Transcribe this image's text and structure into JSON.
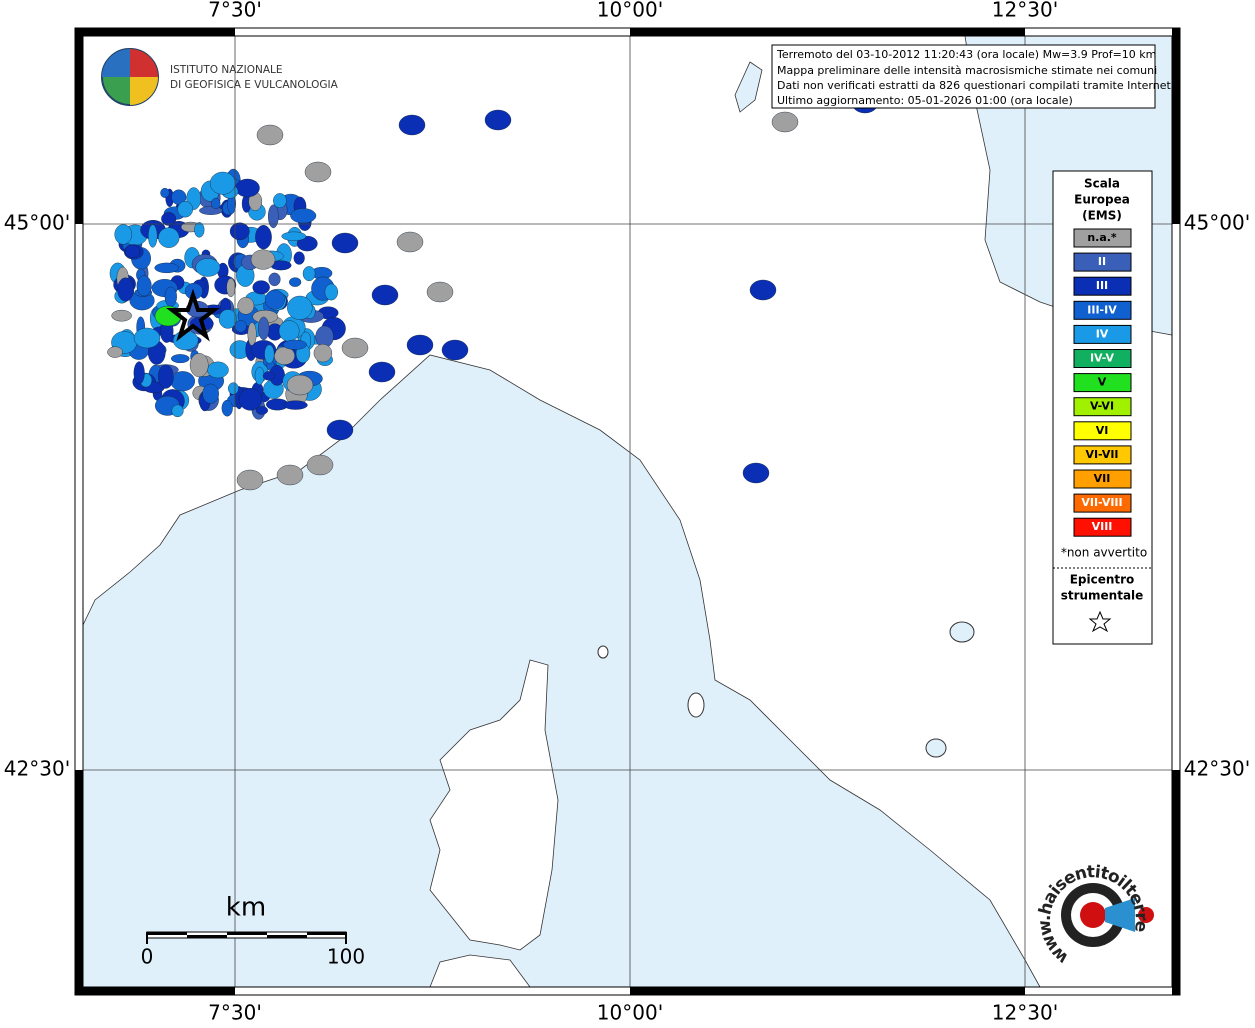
{
  "axes": {
    "top": [
      "7°30'",
      "10°00'",
      "12°30'"
    ],
    "bottom": [
      "7°30'",
      "10°00'",
      "12°30'"
    ],
    "left": [
      "45°00'",
      "42°30'"
    ],
    "right": [
      "45°00'",
      "42°30'"
    ]
  },
  "info": [
    "Terremoto del 03-10-2012 11:20:43 (ora locale) Mw=3.9 Prof=10 km",
    "Mappa preliminare delle intensità macrosismiche stimate nei comuni",
    "Dati non verificati estratti da 826 questionari compilati tramite Internet.",
    "Ultimo aggiornamento: 05-01-2026 01:00 (ora locale)"
  ],
  "logo_ingv": [
    "ISTITUTO NAZIONALE",
    "DI GEOFISICA E VULCANOLOGIA"
  ],
  "legend": {
    "title": [
      "Scala",
      "Europea",
      "(EMS)"
    ],
    "items": [
      {
        "label": "n.a.*",
        "color": "#a0a0a0"
      },
      {
        "label": "II",
        "color": "#3a5fb8"
      },
      {
        "label": "III",
        "color": "#0a2fb4"
      },
      {
        "label": "III-IV",
        "color": "#1060d0"
      },
      {
        "label": "IV",
        "color": "#1a9ae6"
      },
      {
        "label": "IV-V",
        "color": "#10b060"
      },
      {
        "label": "V",
        "color": "#20e020"
      },
      {
        "label": "V-VI",
        "color": "#a0f000"
      },
      {
        "label": "VI",
        "color": "#ffff00"
      },
      {
        "label": "VI-VII",
        "color": "#ffc800"
      },
      {
        "label": "VII",
        "color": "#ffa000"
      },
      {
        "label": "VII-VIII",
        "color": "#ff6a00"
      },
      {
        "label": "VIII",
        "color": "#ff1000"
      }
    ],
    "note": "*non avvertito",
    "epicenter": [
      "Epicentro",
      "strumentale"
    ]
  },
  "scale": {
    "unit": "km",
    "ticks": [
      0,
      100
    ]
  },
  "logo_hsit": "www.haisentitoilterremoto.it"
}
